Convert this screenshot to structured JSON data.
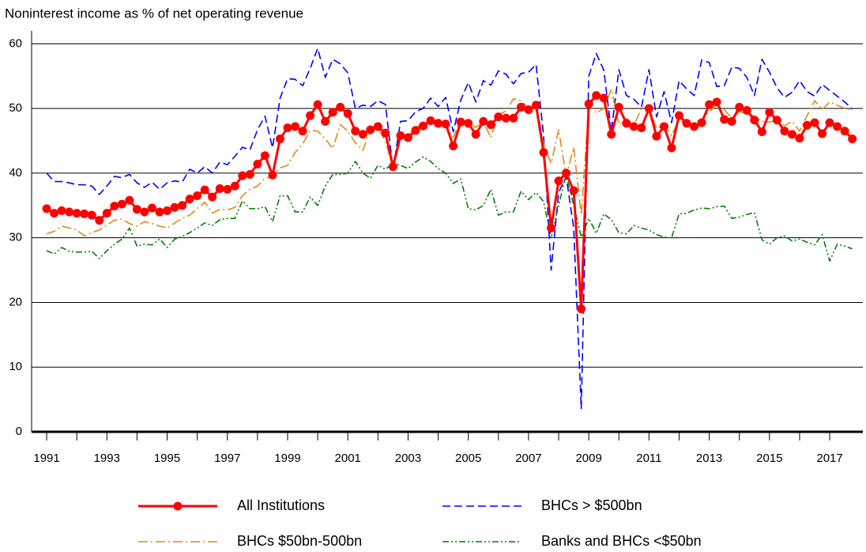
{
  "chart_data": {
    "type": "line",
    "title": "Noninterest income as % of net operating revenue",
    "x": [
      1991,
      1991.25,
      1991.5,
      1991.75,
      1992,
      1992.25,
      1992.5,
      1992.75,
      1993,
      1993.25,
      1993.5,
      1993.75,
      1994,
      1994.25,
      1994.5,
      1994.75,
      1995,
      1995.25,
      1995.5,
      1995.75,
      1996,
      1996.25,
      1996.5,
      1996.75,
      1997,
      1997.25,
      1997.5,
      1997.75,
      1998,
      1998.25,
      1998.5,
      1998.75,
      1999,
      1999.25,
      1999.5,
      1999.75,
      2000,
      2000.25,
      2000.5,
      2000.75,
      2001,
      2001.25,
      2001.5,
      2001.75,
      2002,
      2002.25,
      2002.5,
      2002.75,
      2003,
      2003.25,
      2003.5,
      2003.75,
      2004,
      2004.25,
      2004.5,
      2004.75,
      2005,
      2005.25,
      2005.5,
      2005.75,
      2006,
      2006.25,
      2006.5,
      2006.75,
      2007,
      2007.25,
      2007.5,
      2007.75,
      2008,
      2008.25,
      2008.5,
      2008.75,
      2009,
      2009.25,
      2009.5,
      2009.75,
      2010,
      2010.25,
      2010.5,
      2010.75,
      2011,
      2011.25,
      2011.5,
      2011.75,
      2012,
      2012.25,
      2012.5,
      2012.75,
      2013,
      2013.25,
      2013.5,
      2013.75,
      2014,
      2014.25,
      2014.5,
      2014.75,
      2015,
      2015.25,
      2015.5,
      2015.75,
      2016,
      2016.25,
      2016.5,
      2016.75,
      2017,
      2017.25,
      2017.5,
      2017.75
    ],
    "series": [
      {
        "name": "All Institutions",
        "color": "#ff0000",
        "marker": true,
        "dash": "none",
        "values": [
          34.5,
          33.8,
          34.2,
          34.0,
          33.8,
          33.7,
          33.5,
          32.7,
          33.8,
          34.9,
          35.2,
          35.8,
          34.4,
          34.0,
          34.6,
          34.0,
          34.2,
          34.7,
          35.0,
          36.0,
          36.5,
          37.4,
          36.3,
          37.6,
          37.5,
          38.0,
          39.6,
          39.8,
          41.4,
          42.7,
          39.7,
          45.3,
          47.0,
          47.2,
          46.5,
          48.9,
          50.6,
          48.0,
          49.4,
          50.2,
          49.2,
          46.5,
          46.0,
          46.7,
          47.2,
          46.2,
          41.0,
          45.8,
          45.5,
          46.6,
          47.3,
          48.1,
          47.7,
          47.6,
          44.2,
          47.9,
          47.7,
          46.0,
          48.0,
          47.5,
          48.7,
          48.5,
          48.5,
          50.2,
          49.8,
          50.5,
          43.2,
          31.5,
          38.8,
          40.0,
          37.3,
          19.0,
          50.7,
          52.0,
          51.6,
          46.0,
          50.2,
          47.7,
          47.2,
          47.0,
          50.0,
          45.7,
          47.2,
          43.9,
          48.9,
          47.7,
          47.2,
          47.8,
          50.6,
          51.0,
          48.3,
          48.0,
          50.2,
          49.7,
          48.2,
          46.4,
          49.4,
          48.2,
          46.5,
          46.0,
          45.4,
          47.4,
          47.8,
          46.1,
          47.8,
          47.2,
          46.5,
          45.3
        ]
      },
      {
        "name": "BHCs > $500bn",
        "color": "#0000ff",
        "marker": false,
        "dash": "10,5",
        "values": [
          40.0,
          38.7,
          38.7,
          38.5,
          38.2,
          38.2,
          38.0,
          36.7,
          38.0,
          39.5,
          39.3,
          39.8,
          38.5,
          37.8,
          38.6,
          37.5,
          38.5,
          38.8,
          38.6,
          40.6,
          40.0,
          41.0,
          40.0,
          41.7,
          41.3,
          42.6,
          44.0,
          43.6,
          46.7,
          48.8,
          43.9,
          51.6,
          54.6,
          54.5,
          53.5,
          56.2,
          59.3,
          54.8,
          57.6,
          56.9,
          55.5,
          50.0,
          50.5,
          50.3,
          51.2,
          50.6,
          40.6,
          48.0,
          48.1,
          49.5,
          50.0,
          51.6,
          50.3,
          51.7,
          46.4,
          51.3,
          54.0,
          51.0,
          54.3,
          53.6,
          55.8,
          55.3,
          53.8,
          55.4,
          55.6,
          56.8,
          45.8,
          25.0,
          37.0,
          39.5,
          31.5,
          3.6,
          55.0,
          58.5,
          55.9,
          46.4,
          56.0,
          52.0,
          51.4,
          50.2,
          56.0,
          48.7,
          52.6,
          47.8,
          54.3,
          53.0,
          52.0,
          57.5,
          57.1,
          53.4,
          53.5,
          56.4,
          56.2,
          54.8,
          52.0,
          57.6,
          55.6,
          53.2,
          51.7,
          52.5,
          54.3,
          52.6,
          51.9,
          53.7,
          52.8,
          51.9,
          51.0,
          49.9
        ]
      },
      {
        "name": "BHCs $50bn-500bn",
        "color": "#e08a14",
        "marker": false,
        "dash": "12,4,2,4",
        "values": [
          30.6,
          31.0,
          31.8,
          31.5,
          31.2,
          30.3,
          30.8,
          31.2,
          32.0,
          32.7,
          32.9,
          32.2,
          31.8,
          32.5,
          32.2,
          31.8,
          31.5,
          32.3,
          33.0,
          33.5,
          34.5,
          35.5,
          33.8,
          34.4,
          34.3,
          34.7,
          36.5,
          37.5,
          38.0,
          39.2,
          39.5,
          40.8,
          41.2,
          43.2,
          44.5,
          46.6,
          46.5,
          45.3,
          43.8,
          47.5,
          46.5,
          44.7,
          43.5,
          46.8,
          47.1,
          44.9,
          40.8,
          45.5,
          46.0,
          47.0,
          47.7,
          47.5,
          48.5,
          47.3,
          45.5,
          48.3,
          47.6,
          47.1,
          47.9,
          45.5,
          49.0,
          49.6,
          51.5,
          51.2,
          50.0,
          50.8,
          44.6,
          41.5,
          46.7,
          39.5,
          44.0,
          33.5,
          50.5,
          49.3,
          50.0,
          53.0,
          47.5,
          48.4,
          47.4,
          50.0,
          50.2,
          46.9,
          47.5,
          45.8,
          48.3,
          47.5,
          47.8,
          48.2,
          49.5,
          50.6,
          49.8,
          48.5,
          49.5,
          49.2,
          48.8,
          48.0,
          47.9,
          48.2,
          47.3,
          48.0,
          46.5,
          48.9,
          51.2,
          49.8,
          51.0,
          50.5,
          50.0,
          49.8
        ]
      },
      {
        "name": "Banks and BHCs <$50bn",
        "color": "#008000",
        "marker": false,
        "dash": "8,3,2,3,2,3",
        "values": [
          28.0,
          27.5,
          28.5,
          27.9,
          27.8,
          27.8,
          27.9,
          26.8,
          28.0,
          29.0,
          29.8,
          31.5,
          28.7,
          29.0,
          28.9,
          29.8,
          28.5,
          29.8,
          30.2,
          30.8,
          31.5,
          32.3,
          31.9,
          32.8,
          33.0,
          33.0,
          35.7,
          34.5,
          34.5,
          34.8,
          32.5,
          36.5,
          36.5,
          34.0,
          34.0,
          36.3,
          35.0,
          38.0,
          39.8,
          39.8,
          40.0,
          41.8,
          40.0,
          39.2,
          41.2,
          40.6,
          41.5,
          41.2,
          40.7,
          41.7,
          42.5,
          41.8,
          40.7,
          40.0,
          38.4,
          39.1,
          34.5,
          34.3,
          35.0,
          37.5,
          33.5,
          34.0,
          34.0,
          37.2,
          35.9,
          37.0,
          35.6,
          30.0,
          35.0,
          39.8,
          35.0,
          30.1,
          33.0,
          30.7,
          33.7,
          32.8,
          30.8,
          30.6,
          31.9,
          31.5,
          31.2,
          30.5,
          30.1,
          30.0,
          33.7,
          33.8,
          34.3,
          34.6,
          34.5,
          34.8,
          34.9,
          33.0,
          33.2,
          33.6,
          33.9,
          29.7,
          29.0,
          30.0,
          30.3,
          29.5,
          29.8,
          29.3,
          28.9,
          30.5,
          26.4,
          29.0,
          28.7,
          28.3
        ]
      }
    ],
    "xlim": [
      1990.5,
      2018.1
    ],
    "xticks": [
      1991,
      1993,
      1995,
      1997,
      1999,
      2001,
      2003,
      2005,
      2007,
      2009,
      2011,
      2013,
      2015,
      2017
    ],
    "ylim": [
      0,
      62
    ],
    "yticks": [
      0,
      10,
      20,
      30,
      40,
      50,
      60
    ],
    "grid": true
  }
}
